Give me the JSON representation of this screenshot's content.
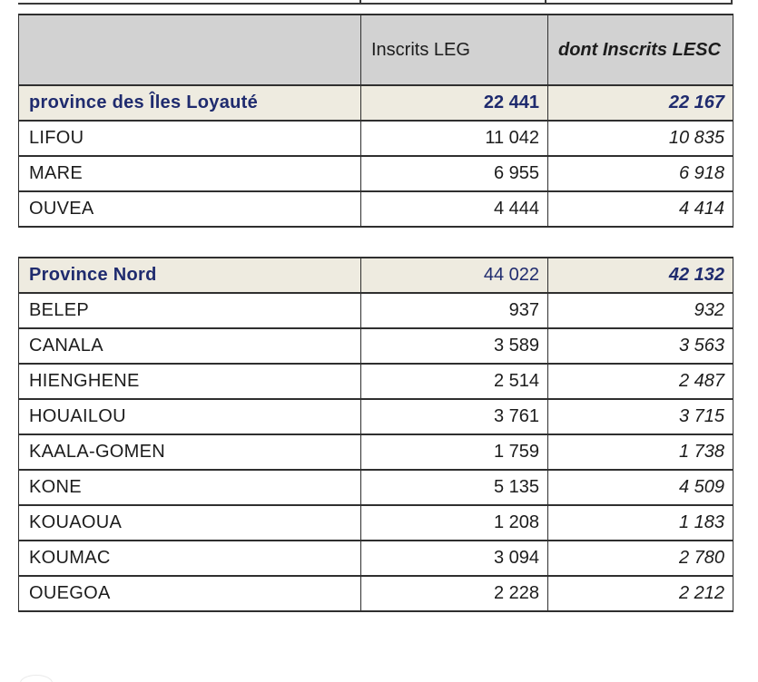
{
  "colors": {
    "header_bg": "#d2d2d2",
    "summary_bg": "#eeebe0",
    "accent_navy": "#1f2b6e",
    "border": "#2f2f2f",
    "text": "#1c1c1c"
  },
  "tables": [
    {
      "name": "province des Îles Loyauté",
      "header": {
        "label_col": "",
        "leg_label": "Inscrits LEG",
        "lesc_label": "dont Inscrits LESC"
      },
      "summary": {
        "label": "province des Îles Loyauté",
        "leg": "22 441",
        "lesc": "22 167"
      },
      "rows": [
        {
          "label": "LIFOU",
          "leg": "11 042",
          "lesc": "10 835"
        },
        {
          "label": "MARE",
          "leg": "6 955",
          "lesc": "6 918"
        },
        {
          "label": "OUVEA",
          "leg": "4 444",
          "lesc": "4 414"
        }
      ]
    },
    {
      "name": "Province Nord",
      "summary": {
        "label": "Province Nord",
        "leg": "44 022",
        "lesc": "42 132"
      },
      "rows": [
        {
          "label": "BELEP",
          "leg": "937",
          "lesc": "932"
        },
        {
          "label": "CANALA",
          "leg": "3 589",
          "lesc": "3 563"
        },
        {
          "label": "HIENGHENE",
          "leg": "2 514",
          "lesc": "2 487"
        },
        {
          "label": "HOUAILOU",
          "leg": "3 761",
          "lesc": "3 715"
        },
        {
          "label": "KAALA-GOMEN",
          "leg": "1 759",
          "lesc": "1 738"
        },
        {
          "label": "KONE",
          "leg": "5 135",
          "lesc": "4 509"
        },
        {
          "label": "KOUAOUA",
          "leg": "1 208",
          "lesc": "1 183"
        },
        {
          "label": "KOUMAC",
          "leg": "3 094",
          "lesc": "2 780"
        },
        {
          "label": "OUEGOA",
          "leg": "2 228",
          "lesc": "2 212"
        }
      ]
    }
  ]
}
